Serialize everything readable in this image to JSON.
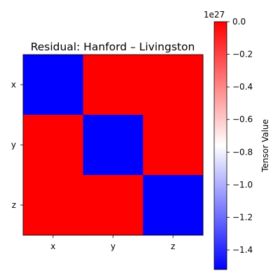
{
  "chart_data": {
    "type": "heatmap",
    "title": "Residual: Hanford – Livingston",
    "x_tick_labels": [
      "x",
      "y",
      "z"
    ],
    "y_tick_labels": [
      "x",
      "y",
      "z"
    ],
    "values": [
      [
        -1.52,
        0.0,
        0.0
      ],
      [
        0.0,
        -1.52,
        0.0
      ],
      [
        0.0,
        0.0,
        -1.52
      ]
    ],
    "value_multiplier": 1e+27,
    "colorbar": {
      "label": "Tensor Value",
      "offset_text": "1e27",
      "range": [
        -1.52,
        0.0
      ],
      "ticks": [
        0.0,
        -0.2,
        -0.4,
        -0.6,
        -0.8,
        -1.0,
        -1.2,
        -1.4
      ],
      "tick_labels": [
        "0.0",
        "−0.2",
        "−0.4",
        "−0.6",
        "−0.8",
        "−1.0",
        "−1.2",
        "−1.4"
      ]
    },
    "colormap": "bwr",
    "colors": {
      "low": "#0000ff",
      "mid": "#ffffff",
      "high": "#ff0000"
    },
    "grid": false
  }
}
